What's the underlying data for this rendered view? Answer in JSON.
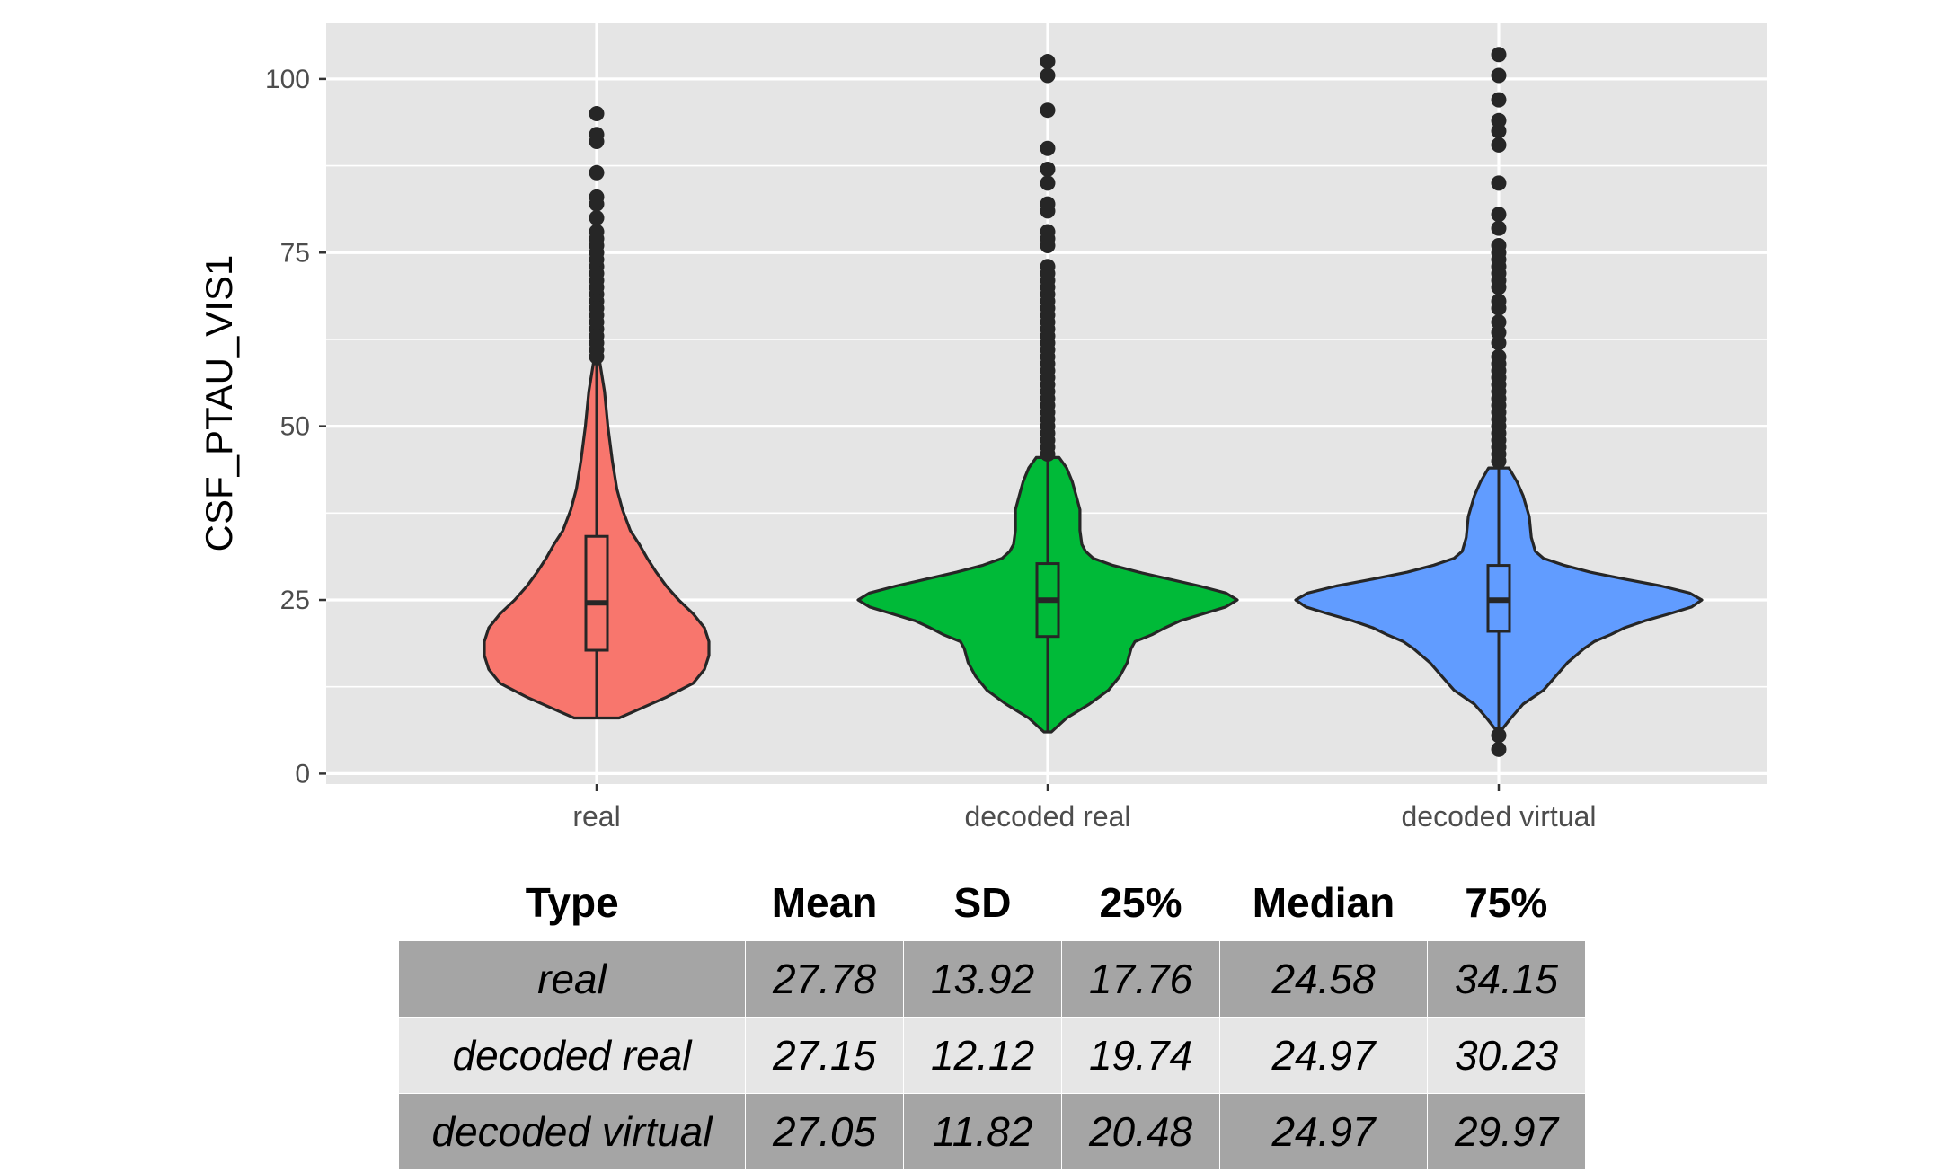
{
  "chart_data": {
    "type": "violin",
    "ylabel": "CSF_PTAU_VIS1",
    "xlabel": "",
    "ylim": [
      -1.5,
      108
    ],
    "yticks": [
      0,
      25,
      50,
      75,
      100
    ],
    "grid": true,
    "categories": [
      "real",
      "decoded real",
      "decoded virtual"
    ],
    "series": [
      {
        "category": "real",
        "color": "#F8766D",
        "box": {
          "q1": 17.76,
          "median": 24.58,
          "q3": 34.15
        },
        "whisker": [
          8,
          59
        ],
        "range": [
          8,
          59
        ],
        "violin_profile": [
          [
            8,
            0.2
          ],
          [
            9,
            0.34
          ],
          [
            11,
            0.62
          ],
          [
            13,
            0.86
          ],
          [
            15,
            0.96
          ],
          [
            17,
            1.0
          ],
          [
            19,
            1.0
          ],
          [
            21,
            0.96
          ],
          [
            23,
            0.86
          ],
          [
            25,
            0.73
          ],
          [
            27,
            0.62
          ],
          [
            29,
            0.53
          ],
          [
            31,
            0.45
          ],
          [
            33,
            0.38
          ],
          [
            35,
            0.3
          ],
          [
            38,
            0.23
          ],
          [
            41,
            0.18
          ],
          [
            45,
            0.14
          ],
          [
            50,
            0.1
          ],
          [
            55,
            0.07
          ],
          [
            59,
            0.03
          ]
        ],
        "outliers": [
          60,
          61,
          62,
          63,
          64,
          65,
          66,
          67,
          68,
          69,
          70,
          71,
          72,
          73,
          74,
          75,
          76,
          77,
          78,
          80,
          82,
          83,
          86.5,
          91,
          92,
          95
        ]
      },
      {
        "category": "decoded real",
        "color": "#00BA38",
        "box": {
          "q1": 19.74,
          "median": 24.97,
          "q3": 30.23
        },
        "whisker": [
          6,
          45.5
        ],
        "range": [
          6,
          45.5
        ],
        "violin_profile": [
          [
            6,
            0.02
          ],
          [
            8,
            0.1
          ],
          [
            10,
            0.22
          ],
          [
            12,
            0.32
          ],
          [
            14,
            0.38
          ],
          [
            16,
            0.42
          ],
          [
            18,
            0.44
          ],
          [
            19,
            0.46
          ],
          [
            20,
            0.55
          ],
          [
            21,
            0.62
          ],
          [
            22,
            0.7
          ],
          [
            23,
            0.82
          ],
          [
            24,
            0.94
          ],
          [
            25,
            1.0
          ],
          [
            26,
            0.94
          ],
          [
            27,
            0.8
          ],
          [
            28,
            0.64
          ],
          [
            29,
            0.48
          ],
          [
            30,
            0.34
          ],
          [
            31,
            0.24
          ],
          [
            32,
            0.2
          ],
          [
            33,
            0.18
          ],
          [
            35,
            0.17
          ],
          [
            38,
            0.17
          ],
          [
            40,
            0.15
          ],
          [
            42,
            0.13
          ],
          [
            44,
            0.1
          ],
          [
            45.5,
            0.06
          ]
        ],
        "outliers": [
          46,
          47,
          48,
          49,
          50,
          51,
          52,
          53,
          54,
          55,
          56,
          57,
          58,
          59,
          60,
          61,
          62,
          63,
          64,
          65,
          66,
          67,
          68,
          69,
          70,
          71,
          72,
          73,
          76,
          77,
          78,
          81,
          82,
          85,
          87,
          90,
          95.5,
          100.5,
          102.5
        ]
      },
      {
        "category": "decoded virtual",
        "color": "#619CFF",
        "box": {
          "q1": 20.48,
          "median": 24.97,
          "q3": 29.97
        },
        "whisker": [
          6.5,
          44
        ],
        "range": [
          6.5,
          44
        ],
        "violin_profile": [
          [
            6.5,
            0.02
          ],
          [
            8,
            0.06
          ],
          [
            10,
            0.12
          ],
          [
            12,
            0.22
          ],
          [
            14,
            0.28
          ],
          [
            16,
            0.34
          ],
          [
            18,
            0.42
          ],
          [
            19,
            0.47
          ],
          [
            20,
            0.55
          ],
          [
            21,
            0.62
          ],
          [
            22,
            0.72
          ],
          [
            23,
            0.84
          ],
          [
            24,
            0.95
          ],
          [
            25,
            1.0
          ],
          [
            26,
            0.94
          ],
          [
            27,
            0.8
          ],
          [
            28,
            0.62
          ],
          [
            29,
            0.45
          ],
          [
            30,
            0.32
          ],
          [
            31,
            0.22
          ],
          [
            32,
            0.18
          ],
          [
            34,
            0.16
          ],
          [
            37,
            0.15
          ],
          [
            40,
            0.12
          ],
          [
            42,
            0.09
          ],
          [
            44,
            0.05
          ]
        ],
        "outliers": [
          3.5,
          5.5,
          45,
          46,
          47,
          48,
          49,
          50,
          51,
          52,
          53,
          54,
          55,
          56,
          57,
          58,
          59,
          60,
          62,
          63.5,
          65,
          67,
          68,
          70,
          71,
          72,
          73,
          74,
          75,
          76,
          78.5,
          80.5,
          85,
          90.5,
          92.5,
          94,
          97,
          100.5,
          103.5
        ]
      }
    ]
  },
  "table": {
    "headers": [
      "Type",
      "Mean",
      "SD",
      "25%",
      "Median",
      "75%"
    ],
    "rows": [
      [
        "real",
        "27.78",
        "13.92",
        "17.76",
        "24.58",
        "34.15"
      ],
      [
        "decoded real",
        "27.15",
        "12.12",
        "19.74",
        "24.97",
        "30.23"
      ],
      [
        "decoded virtual",
        "27.05",
        "11.82",
        "20.48",
        "24.97",
        "29.97"
      ]
    ]
  },
  "colors": {
    "panel_background": "#E5E5E5",
    "grid": "#FFFFFF",
    "outline": "#262626",
    "table_row_dark": "#A5A5A5",
    "table_row_light": "#E6E6E6"
  }
}
